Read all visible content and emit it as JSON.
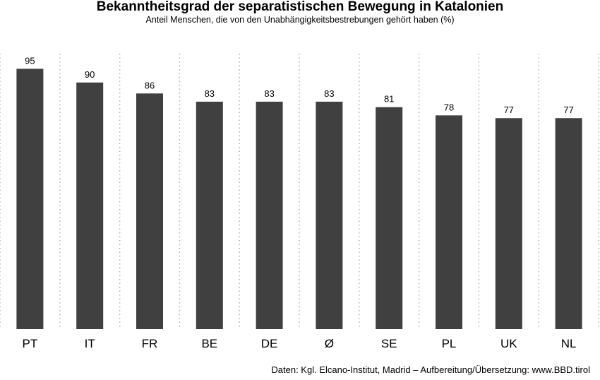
{
  "chart_data": {
    "type": "bar",
    "title": "Bekanntheitsgrad der separatistischen Bewegung in Katalonien",
    "subtitle": "Anteil Menschen, die von den Unabhängigkeitsbestrebungen gehört haben (%)",
    "categories": [
      "PT",
      "IT",
      "FR",
      "BE",
      "DE",
      "Ø",
      "SE",
      "PL",
      "UK",
      "NL"
    ],
    "values": [
      95,
      90,
      86,
      83,
      83,
      83,
      81,
      78,
      77,
      77
    ],
    "xlabel": "",
    "ylabel": "",
    "ylim": [
      0,
      100
    ],
    "grid": "vertical dotted",
    "bar_color": "#404040"
  },
  "footer": {
    "source": "Daten: Kgl. Elcano-Institut, Madrid – Aufbereitung/Übersetzung: www.BBD.tirol"
  }
}
